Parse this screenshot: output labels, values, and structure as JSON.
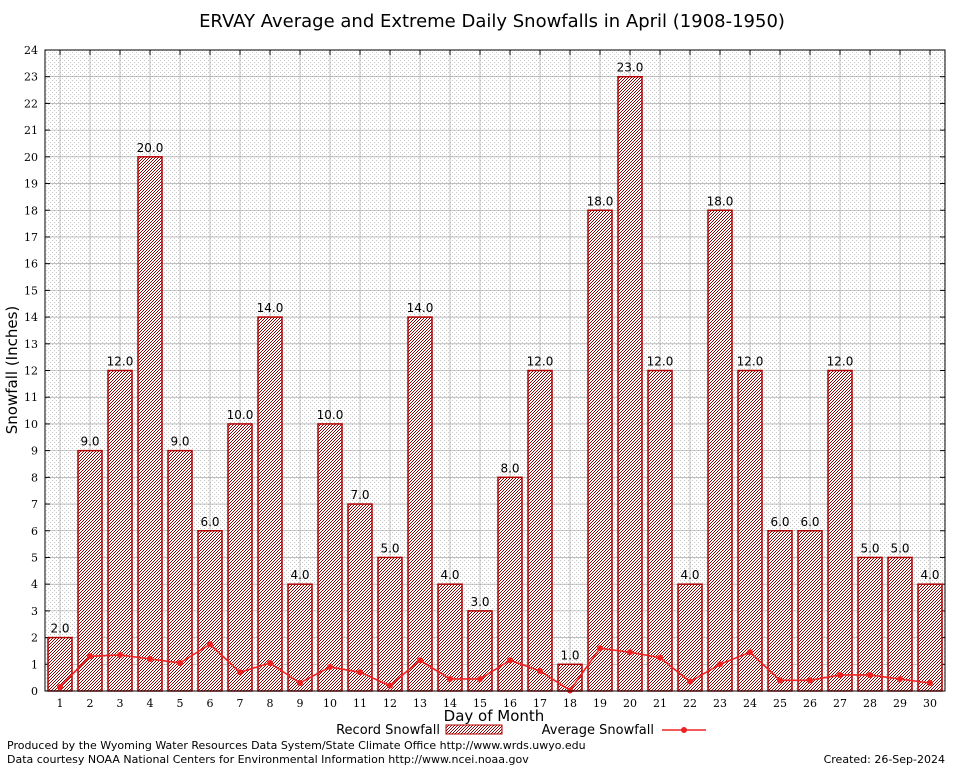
{
  "chart_data": {
    "type": "bar",
    "title": "ERVAY Average and Extreme Daily Snowfalls in April (1908-1950)",
    "xlabel": "Day of Month",
    "ylabel": "Snowfall (Inches)",
    "ylim": [
      0,
      24
    ],
    "yticks": [
      "0",
      "1",
      "2",
      "3",
      "4",
      "5",
      "6",
      "7",
      "8",
      "9",
      "10",
      "11",
      "12",
      "13",
      "14",
      "15",
      "16",
      "17",
      "18",
      "19",
      "20",
      "21",
      "22",
      "23",
      "24"
    ],
    "categories": [
      "1",
      "2",
      "3",
      "4",
      "5",
      "6",
      "7",
      "8",
      "9",
      "10",
      "11",
      "12",
      "13",
      "14",
      "15",
      "16",
      "17",
      "18",
      "19",
      "20",
      "21",
      "22",
      "23",
      "24",
      "25",
      "26",
      "27",
      "28",
      "29",
      "30"
    ],
    "series": [
      {
        "name": "Record Snowfall",
        "type": "bar",
        "color": "#b00000",
        "values": [
          2.0,
          9.0,
          12.0,
          20.0,
          9.0,
          6.0,
          10.0,
          14.0,
          4.0,
          10.0,
          7.0,
          5.0,
          14.0,
          4.0,
          3.0,
          8.0,
          12.0,
          1.0,
          18.0,
          23.0,
          12.0,
          4.0,
          18.0,
          12.0,
          6.0,
          6.0,
          12.0,
          5.0,
          5.0,
          4.0
        ],
        "labels": [
          "2.0",
          "9.0",
          "12.0",
          "20.0",
          "9.0",
          "6.0",
          "10.0",
          "14.0",
          "4.0",
          "10.0",
          "7.0",
          "5.0",
          "14.0",
          "4.0",
          "3.0",
          "8.0",
          "12.0",
          "1.0",
          "18.0",
          "23.0",
          "12.0",
          "4.0",
          "18.0",
          "12.0",
          "6.0",
          "6.0",
          "12.0",
          "5.0",
          "5.0",
          "4.0"
        ]
      },
      {
        "name": "Average Snowfall",
        "type": "line",
        "color": "#ee2222",
        "values": [
          0.15,
          1.3,
          1.35,
          1.2,
          1.05,
          1.75,
          0.7,
          1.05,
          0.3,
          0.9,
          0.7,
          0.2,
          1.15,
          0.45,
          0.45,
          1.15,
          0.75,
          0.02,
          1.6,
          1.45,
          1.25,
          0.35,
          1.0,
          1.45,
          0.4,
          0.4,
          0.6,
          0.6,
          0.45,
          0.3
        ]
      }
    ],
    "grid": true,
    "legend": "bottom-center"
  },
  "footer": {
    "produced_by": "Produced by the Wyoming Water Resources Data System/State Climate Office http://www.wrds.uwyo.edu",
    "courtesy": "Data courtesy NOAA National Centers for Environmental Information http://www.ncei.noaa.gov",
    "created": "Created: 26-Sep-2024"
  }
}
